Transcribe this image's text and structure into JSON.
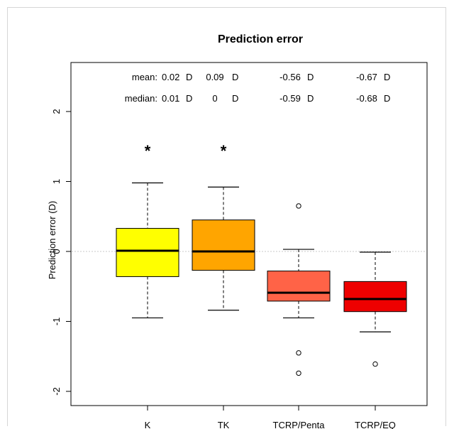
{
  "chart_data": {
    "type": "boxplot",
    "title": "Prediction error",
    "ylabel": "Prediction error (D)",
    "xlabel": "",
    "ylim": [
      -2.2,
      2.4
    ],
    "yticks": [
      {
        "value": 2,
        "label": "2"
      },
      {
        "value": 1,
        "label": "1"
      },
      {
        "value": 0,
        "label": "0"
      },
      {
        "value": -1,
        "label": "-1"
      },
      {
        "value": -2,
        "label": "-2"
      }
    ],
    "reference_line": 0,
    "grid": false,
    "stat_rows": [
      {
        "label": "mean:",
        "values": [
          "0.02",
          "0.09",
          "-0.56",
          "-0.67"
        ],
        "unit": "D"
      },
      {
        "label": "median:",
        "values": [
          "0.01",
          "0",
          "-0.59",
          "-0.68"
        ],
        "unit": "D"
      }
    ],
    "groups": [
      {
        "name": "K",
        "color": "#ffff00",
        "whisker_low": -0.95,
        "q1": -0.36,
        "median": 0.01,
        "q3": 0.33,
        "whisker_high": 0.98,
        "outliers": [],
        "marker": "*"
      },
      {
        "name": "TK",
        "color": "#ffa500",
        "whisker_low": -0.84,
        "q1": -0.27,
        "median": 0.0,
        "q3": 0.45,
        "whisker_high": 0.92,
        "outliers": [],
        "marker": "*"
      },
      {
        "name": "TCRP/Penta",
        "color": "#ff6347",
        "whisker_low": -0.95,
        "q1": -0.71,
        "median": -0.59,
        "q3": -0.28,
        "whisker_high": 0.03,
        "outliers": [
          0.65,
          -1.45,
          -1.74
        ],
        "marker": ""
      },
      {
        "name": "TCRP/EQ",
        "color": "#ee0000",
        "whisker_low": -1.15,
        "q1": -0.86,
        "median": -0.68,
        "q3": -0.43,
        "whisker_high": -0.01,
        "outliers": [
          -1.61
        ],
        "marker": ""
      }
    ]
  }
}
